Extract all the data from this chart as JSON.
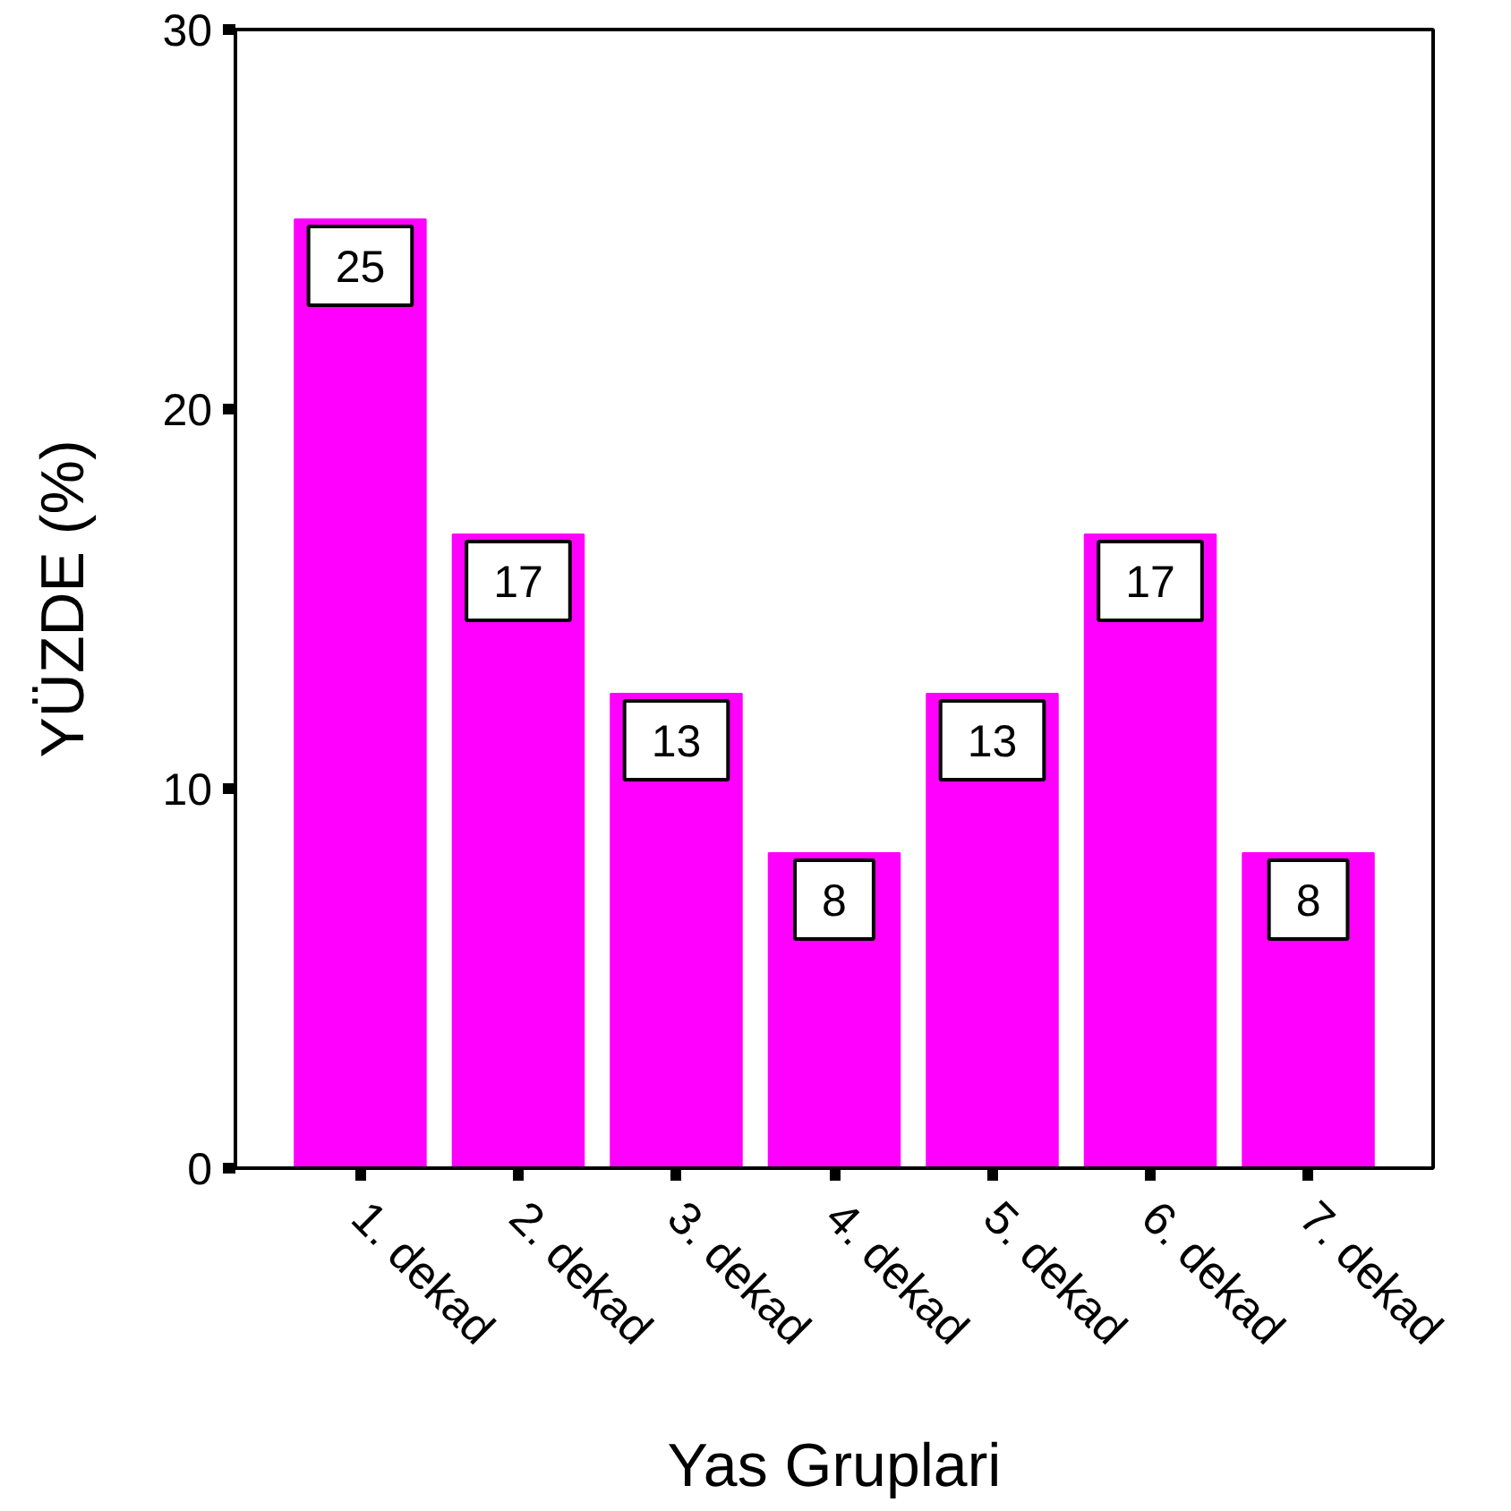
{
  "chart_data": {
    "type": "bar",
    "xlabel": "Yas Gruplari",
    "ylabel": "YÜZDE (%)",
    "categories": [
      "1. dekad",
      "2. dekad",
      "3. dekad",
      "4. dekad",
      "5. dekad",
      "6. dekad",
      "7. dekad"
    ],
    "values": [
      25,
      16.7,
      12.5,
      8.3,
      12.5,
      16.7,
      8.3
    ],
    "value_labels": [
      "25",
      "17",
      "13",
      "8",
      "13",
      "17",
      "8"
    ],
    "color": "#ff00ff",
    "ylim": [
      0,
      30
    ],
    "yticks": [
      0,
      10,
      20,
      30
    ]
  }
}
